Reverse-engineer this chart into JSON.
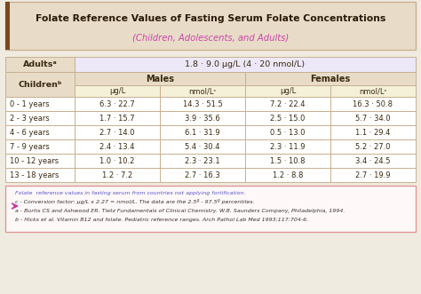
{
  "title_line1": "Folate Reference Values of Fasting Serum Folate Concentrations",
  "title_line2": "(Children, Adolescents, and Adults)",
  "adults_range": "1.8 · 9.0 μg/L (4 · 20 nmol/L)",
  "col_headers": [
    "Males",
    "Females"
  ],
  "sub_headers": [
    "μg/L",
    "nmol/Lᶜ",
    "μg/L",
    "nmol/Lᶜ"
  ],
  "age_groups": [
    "0 - 1 years",
    "2 - 3 years",
    "4 - 6 years",
    "7 - 9 years",
    "10 - 12 years",
    "13 - 18 years"
  ],
  "data": [
    [
      "6.3 · 22.7",
      "14.3 · 51.5",
      "7.2 · 22.4",
      "16.3 · 50.8"
    ],
    [
      "1.7 · 15.7",
      "3.9 · 35.6",
      "2.5 · 15.0",
      "5.7 · 34.0"
    ],
    [
      "2.7 · 14.0",
      "6.1 · 31.9",
      "0.5 · 13.0",
      "1.1 · 29.4"
    ],
    [
      "2.4 · 13.4",
      "5.4 · 30.4",
      "2.3 · 11.9",
      "5.2 · 27.0"
    ],
    [
      "1.0 · 10.2",
      "2.3 · 23.1",
      "1.5 · 10.8",
      "3.4 · 24.5"
    ],
    [
      "1.2 · 7.2",
      "2.7 · 16.3",
      "1.2 · 8.8",
      "2.7 · 19.9"
    ]
  ],
  "footnote_lines": [
    "Folate  reference values in fasting serum from countries not applying fortification.",
    "c - Conversion factor: μg/L x 2.27 = nmol/L. The data are the 2.5º - 97.5º percentiles.",
    "a - Burtis CS and Ashwood ER. Tietz Fundamentals of Clinical Chemistry. W.B. Saunders Company, Philadelphia, 1994.",
    "b - Hicks et al. Vitamin B12 and folate. Pediatric reference ranges. Arch Pathol Lab Med 1993;117:704-6."
  ],
  "outer_bg": "#f0ebe0",
  "title_bg": "#e8dcc8",
  "header_bg": "#e8dcc8",
  "subheader_bg": "#f5f0d8",
  "adults_bg": "#ede8f8",
  "children_bg": "#e8dcc8",
  "row_bg": "#ffffff",
  "footnote_bg": "#fff8f8",
  "border_color": "#c8b090",
  "accent_bar_color": "#7a4820",
  "title_color": "#2a1a05",
  "subtitle_color": "#cc44aa",
  "data_color": "#3a2a10",
  "footnote_color1": "#5555cc",
  "footnote_color2": "#333333",
  "arrow_color": "#cc3399"
}
